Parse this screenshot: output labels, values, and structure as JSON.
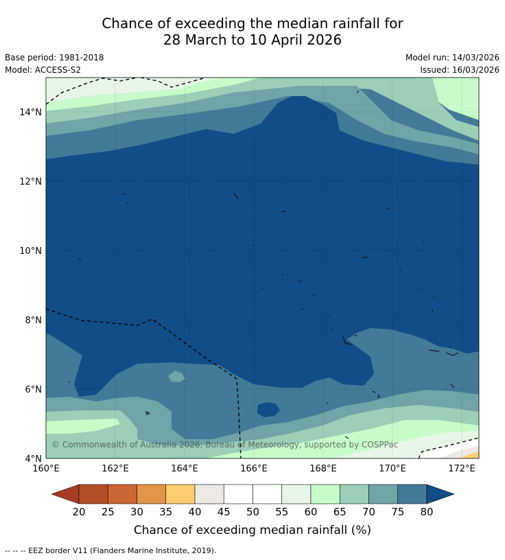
{
  "title": {
    "line1": "Chance of exceeding the median rainfall for",
    "line2": "28 March to 10 April 2026"
  },
  "info": {
    "base_period": "Base period: 1981-2018",
    "model": "Model: ACCESS-S2",
    "model_run": "Model run: 14/03/2026",
    "issued": "Issued: 16/03/2026"
  },
  "map": {
    "lat_labels": [
      "14°N",
      "12°N",
      "10°N",
      "8°N",
      "6°N",
      "4°N"
    ],
    "lon_labels": [
      "160°E",
      "162°E",
      "164°E",
      "166°E",
      "168°E",
      "170°E",
      "172°E"
    ],
    "copyright": "© Commonwealth of Australia 2026, Bureau of Meteorology, supported by COSPPac",
    "colors": {
      "c80plus": "#124d87",
      "c75_80": "#427a98",
      "c70_75": "#6fa5a8",
      "c65_70": "#9bcfb8",
      "c60_65": "#c7fcca",
      "c55_60": "#e8f6e8",
      "c50_55": "#ffffff",
      "c40_45": "#ece8e3",
      "c35_40": "#fccd6e"
    }
  },
  "colorbar": {
    "ticks": [
      "20",
      "25",
      "30",
      "35",
      "40",
      "45",
      "50",
      "55",
      "60",
      "65",
      "70",
      "75",
      "80"
    ],
    "colors": [
      "#a63c21",
      "#b34e27",
      "#cc6733",
      "#e29448",
      "#fccd6e",
      "#ece8e3",
      "#ffffff",
      "#ffffff",
      "#e8f6e8",
      "#c7fcca",
      "#9bcfb8",
      "#6fa5a8",
      "#427a98",
      "#124d87"
    ],
    "label": "Chance of exceeding median rainfall (%)"
  },
  "footer": {
    "legend": "--  --  -- EEZ border V11 (Flanders Marine Institute, 2019)."
  }
}
